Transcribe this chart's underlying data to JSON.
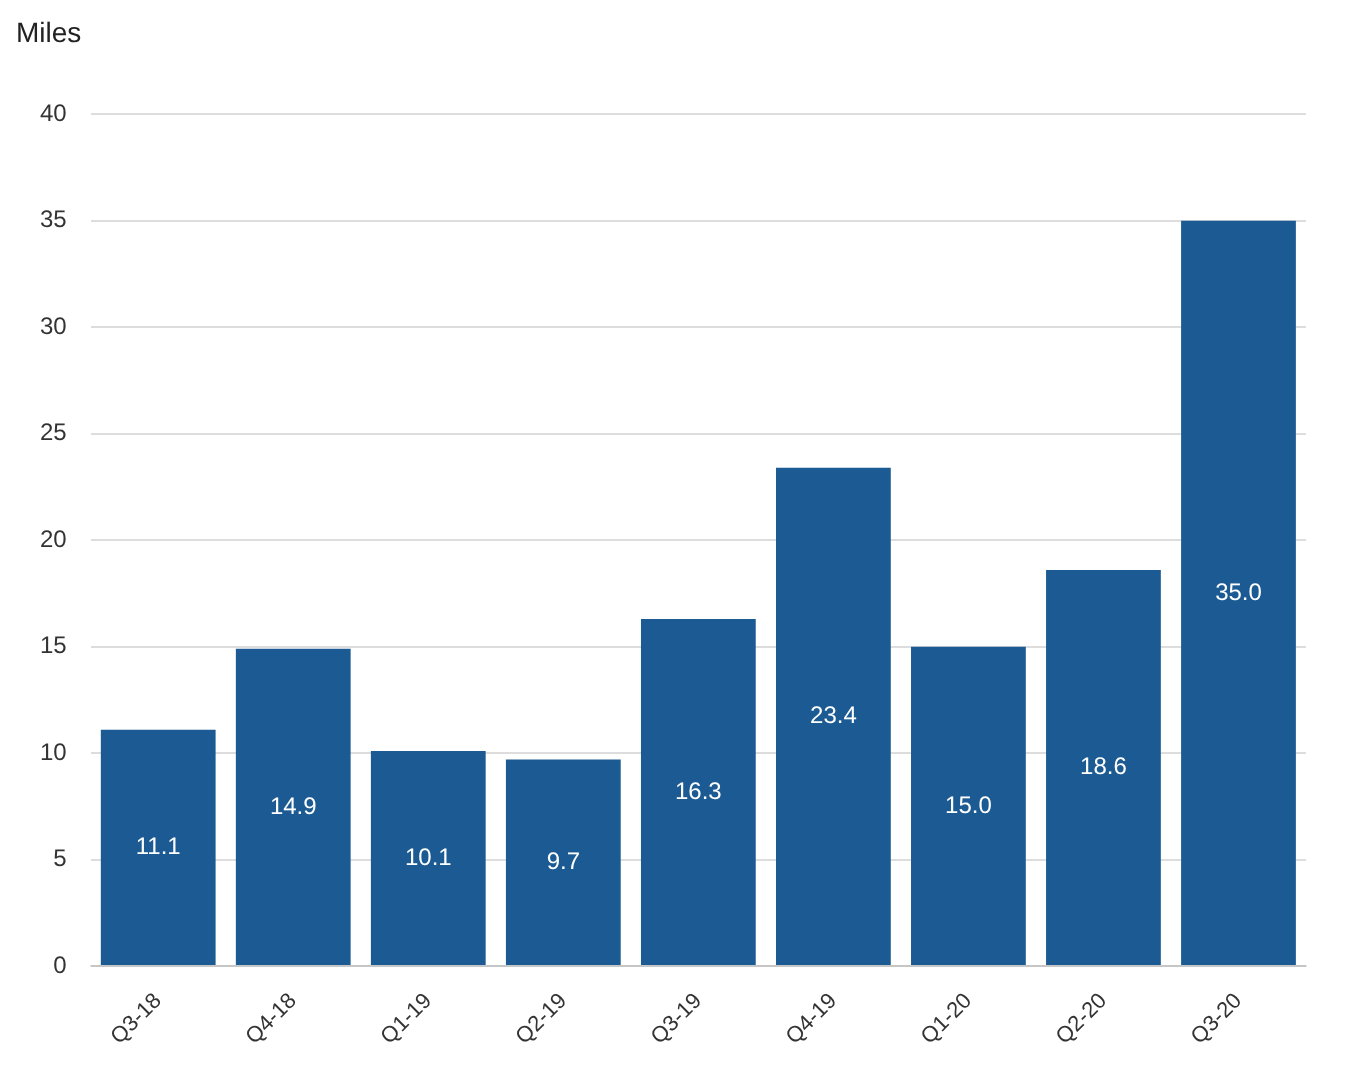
{
  "chart_data": {
    "type": "bar",
    "ylabel": "Miles",
    "categories": [
      "Q3-18",
      "Q4-18",
      "Q1-19",
      "Q2-19",
      "Q3-19",
      "Q4-19",
      "Q1-20",
      "Q2-20",
      "Q3-20"
    ],
    "values": [
      11.1,
      14.9,
      10.1,
      9.7,
      16.3,
      23.4,
      15.0,
      18.6,
      35.0
    ],
    "value_labels": [
      "11.1",
      "14.9",
      "10.1",
      "9.7",
      "16.3",
      "23.4",
      "15.0",
      "18.6",
      "35.0"
    ],
    "color": "#1b5a92",
    "ylim": [
      0,
      40
    ],
    "yticks": [
      0,
      5,
      10,
      15,
      20,
      25,
      30,
      35,
      40
    ],
    "grid": "y",
    "legend": false
  }
}
